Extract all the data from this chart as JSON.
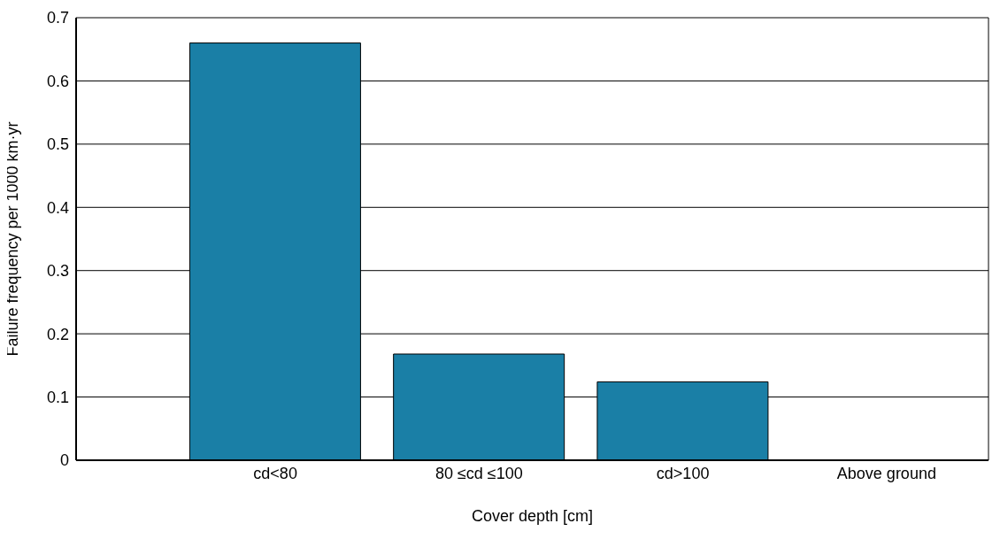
{
  "chart_data": {
    "type": "bar",
    "xlabel": "Cover depth [cm]",
    "ylabel": "Failure frequency per 1000 km·yr",
    "categories": [
      "cd<80",
      "80 ≤cd ≤100",
      "cd>100",
      "Above ground"
    ],
    "values": [
      0.66,
      0.168,
      0.124,
      0
    ],
    "color": "#1a7fa6",
    "ylim": [
      0,
      0.7
    ],
    "yticks": [
      0,
      0.1,
      0.2,
      0.3,
      0.4,
      0.5,
      0.6,
      0.7
    ],
    "grid": "y",
    "legend": false
  }
}
